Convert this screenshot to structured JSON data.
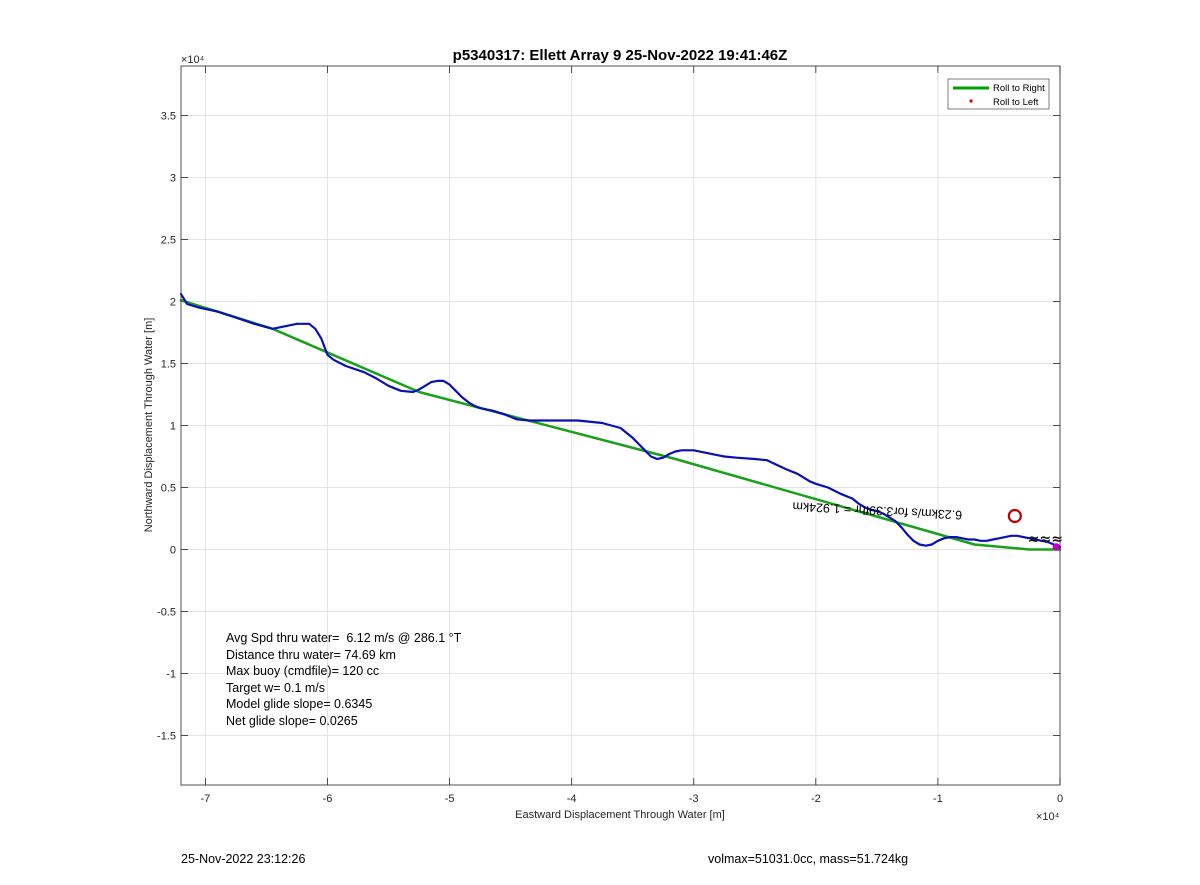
{
  "chart_data": {
    "type": "line",
    "title": "p5340317: Ellett Array 9 25-Nov-2022 19:41:46Z",
    "xlabel": "Eastward Displacement Through Water [m]",
    "ylabel": "Northward Displacement Through Water [m]",
    "x_multiplier_label": "×10⁴",
    "y_multiplier_label": "×10⁴",
    "xlim": [
      -72000,
      0
    ],
    "ylim": [
      -19000,
      39000
    ],
    "x_ticks": [
      -70000,
      -60000,
      -50000,
      -40000,
      -30000,
      -20000,
      -10000,
      0
    ],
    "x_tick_labels": [
      "-7",
      "-6",
      "-5",
      "-4",
      "-3",
      "-2",
      "-1",
      "0"
    ],
    "y_ticks": [
      -15000,
      -10000,
      -5000,
      0,
      5000,
      10000,
      15000,
      20000,
      25000,
      30000,
      35000
    ],
    "y_tick_labels": [
      "-1.5",
      "-1",
      "-0.5",
      "0",
      "0.5",
      "1",
      "1.5",
      "2",
      "2.5",
      "3",
      "3.5"
    ],
    "grid": true,
    "legend_position": "top-right",
    "legend": [
      {
        "label": "Roll to Right",
        "color": "#00a000",
        "style": "line"
      },
      {
        "label": "Roll to Left",
        "color": "#e00000",
        "style": "dot"
      }
    ],
    "series": [
      {
        "name": "Roll to Right",
        "color": "#1aa01a",
        "x": [
          -72000,
          -64500,
          -52500,
          -31500,
          -7000,
          -2500,
          0
        ],
        "y": [
          20100,
          17800,
          12700,
          7300,
          400,
          0,
          0
        ]
      },
      {
        "color": "#0a10b4",
        "x": [
          -72000,
          -71500,
          -70500,
          -69000,
          -67500,
          -66000,
          -64500,
          -63500,
          -62500,
          -61500,
          -61000,
          -60500,
          -60200,
          -60000,
          -59500,
          -58500,
          -57000,
          -56000,
          -55000,
          -54000,
          -53000,
          -52500,
          -52000,
          -51500,
          -51000,
          -50500,
          -50000,
          -49500,
          -49000,
          -48500,
          -48000,
          -47500,
          -47000,
          -46500,
          -45500,
          -44500,
          -43500,
          -42500,
          -41000,
          -39500,
          -37500,
          -36000,
          -35000,
          -34500,
          -34000,
          -33500,
          -33000,
          -32500,
          -32000,
          -31500,
          -31000,
          -30000,
          -29000,
          -28000,
          -27500,
          -26500,
          -25000,
          -24000,
          -22500,
          -21500,
          -21000,
          -20500,
          -20000,
          -19000,
          -18000,
          -17000,
          -16500,
          -16000,
          -15500,
          -15000,
          -14500,
          -14000,
          -13500,
          -13000,
          -12500,
          -12000,
          -11500,
          -11000,
          -10500,
          -10000,
          -9500,
          -9000,
          -8500,
          -8000,
          -7500,
          -7000,
          -6500,
          -6000,
          -5500,
          -5000,
          -4500,
          -4000,
          -3500,
          -3000,
          -2500,
          -2000,
          -1500,
          -1000,
          -500,
          0
        ],
        "y": [
          20600,
          19800,
          19500,
          19200,
          18700,
          18200,
          17800,
          18000,
          18200,
          18200,
          17800,
          17000,
          16200,
          15700,
          15300,
          14800,
          14300,
          13800,
          13200,
          12800,
          12700,
          12900,
          13200,
          13500,
          13600,
          13600,
          13300,
          12800,
          12300,
          11900,
          11600,
          11400,
          11300,
          11200,
          10900,
          10500,
          10400,
          10400,
          10400,
          10400,
          10200,
          9800,
          9000,
          8500,
          8000,
          7500,
          7300,
          7400,
          7700,
          7900,
          8000,
          8000,
          7800,
          7600,
          7500,
          7400,
          7300,
          7200,
          6500,
          6100,
          5800,
          5500,
          5300,
          5000,
          4500,
          4100,
          3700,
          3400,
          3200,
          3100,
          2900,
          2600,
          2300,
          1800,
          1200,
          700,
          400,
          300,
          400,
          700,
          900,
          1000,
          1000,
          900,
          800,
          800,
          700,
          700,
          800,
          900,
          1000,
          1100,
          1100,
          1000,
          900,
          800,
          700,
          600,
          400,
          200
        ]
      }
    ],
    "marker_circle": {
      "x": -3700,
      "y": 2700,
      "color": "#c00000"
    },
    "marker_end": {
      "x": -300,
      "y": 200,
      "color": "#c000c0"
    },
    "glyph_cluster": {
      "x": -1200,
      "y": 500,
      "text": "≈≈≈"
    },
    "rotated_annotation": {
      "text": "6.23km/s for3.39fhr = 1.924km",
      "x": -8000,
      "y": 3100,
      "angle": 183
    },
    "annotations": [
      "Avg Spd thru water=  6.12 m/s @ 286.1 °T",
      "Distance thru water= 74.69 km",
      "Max buoy (cmdfile)= 120 cc",
      "Target w= 0.1 m/s",
      "Model glide slope= 0.6345",
      "Net glide slope= 0.0265"
    ]
  },
  "footer": {
    "timestamp": "25-Nov-2022 23:12:26",
    "mass_info": "volmax=51031.0cc, mass=51.724kg"
  }
}
